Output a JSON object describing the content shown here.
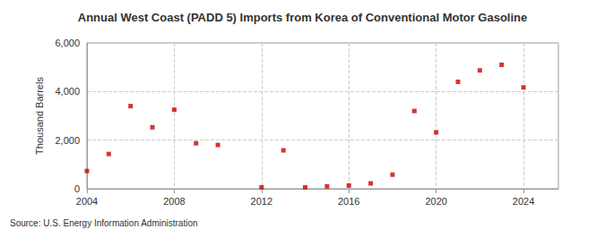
{
  "chart_data": {
    "type": "scatter",
    "title": "Annual West Coast (PADD 5) Imports from Korea of Conventional Motor Gasoline",
    "y_label": "Thousand Barrels",
    "source": "Source: U.S. Energy Information Administration",
    "x": [
      2004,
      2005,
      2006,
      2007,
      2008,
      2009,
      2010,
      2012,
      2013,
      2014,
      2015,
      2016,
      2017,
      2018,
      2019,
      2020,
      2021,
      2022,
      2023,
      2024
    ],
    "values": [
      730,
      1430,
      3400,
      2530,
      3250,
      1870,
      1800,
      60,
      1580,
      60,
      100,
      130,
      220,
      580,
      3200,
      2320,
      4400,
      4870,
      5100,
      4170
    ],
    "color": "#cc0000",
    "marker": "square",
    "xlim": [
      2004,
      2025.6
    ],
    "xticks": [
      2004,
      2008,
      2012,
      2016,
      2020,
      2024
    ],
    "ylim": [
      0,
      6000
    ],
    "yticks": [
      0,
      {
        "value": 2000,
        "label": "2,000"
      },
      {
        "value": 4000,
        "label": "4,000"
      },
      {
        "value": 6000,
        "label": "6,000"
      }
    ],
    "grid": true
  }
}
